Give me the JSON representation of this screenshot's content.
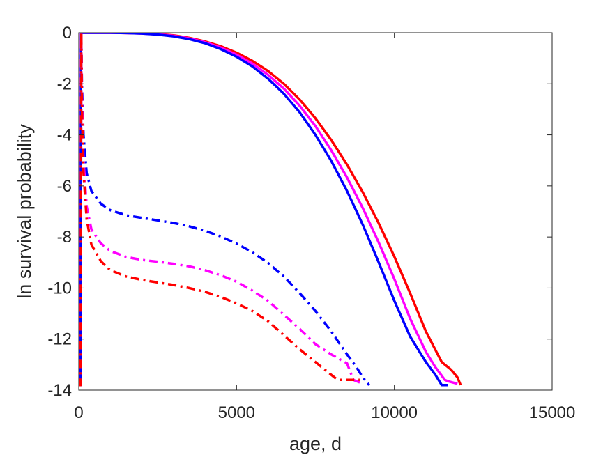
{
  "chart_data": {
    "type": "line",
    "title": "",
    "xlabel": "age, d",
    "ylabel": "ln survival probability",
    "xlim": [
      0,
      15000
    ],
    "ylim": [
      -14,
      0
    ],
    "xticks": [
      0,
      5000,
      10000,
      15000
    ],
    "yticks": [
      0,
      -2,
      -4,
      -6,
      -8,
      -10,
      -12,
      -14
    ],
    "grid": false,
    "legend": "none",
    "series": [
      {
        "color": "#ff0000",
        "style": "solid",
        "points": [
          [
            0,
            -13.8
          ],
          [
            60,
            -13.8
          ],
          [
            70,
            0
          ],
          [
            500,
            0
          ],
          [
            1000,
            0
          ],
          [
            1500,
            -0.01
          ],
          [
            2000,
            -0.02
          ],
          [
            2500,
            -0.05
          ],
          [
            3000,
            -0.1
          ],
          [
            3500,
            -0.2
          ],
          [
            4000,
            -0.34
          ],
          [
            4500,
            -0.53
          ],
          [
            5000,
            -0.78
          ],
          [
            5500,
            -1.1
          ],
          [
            6000,
            -1.5
          ],
          [
            6500,
            -2.0
          ],
          [
            7000,
            -2.62
          ],
          [
            7500,
            -3.35
          ],
          [
            8000,
            -4.2
          ],
          [
            8500,
            -5.17
          ],
          [
            9000,
            -6.25
          ],
          [
            9500,
            -7.45
          ],
          [
            10000,
            -8.77
          ],
          [
            10500,
            -10.2
          ],
          [
            11000,
            -11.7
          ],
          [
            11500,
            -12.9
          ],
          [
            11800,
            -13.2
          ],
          [
            12000,
            -13.5
          ],
          [
            12100,
            -13.8
          ]
        ]
      },
      {
        "color": "#ff00ff",
        "style": "solid",
        "points": [
          [
            0,
            -13.8
          ],
          [
            60,
            -13.8
          ],
          [
            70,
            0
          ],
          [
            500,
            0
          ],
          [
            1000,
            0
          ],
          [
            1500,
            -0.01
          ],
          [
            2000,
            -0.03
          ],
          [
            2500,
            -0.06
          ],
          [
            3000,
            -0.12
          ],
          [
            3500,
            -0.22
          ],
          [
            4000,
            -0.37
          ],
          [
            4500,
            -0.58
          ],
          [
            5000,
            -0.86
          ],
          [
            5500,
            -1.21
          ],
          [
            6000,
            -1.65
          ],
          [
            6500,
            -2.19
          ],
          [
            7000,
            -2.86
          ],
          [
            7500,
            -3.66
          ],
          [
            8000,
            -4.6
          ],
          [
            8500,
            -5.67
          ],
          [
            9000,
            -6.87
          ],
          [
            9500,
            -8.2
          ],
          [
            10000,
            -9.65
          ],
          [
            10500,
            -11.2
          ],
          [
            11000,
            -12.5
          ],
          [
            11300,
            -13.1
          ],
          [
            11600,
            -13.6
          ],
          [
            11700,
            -13.65
          ],
          [
            12000,
            -13.75
          ]
        ]
      },
      {
        "color": "#0000ff",
        "style": "solid",
        "points": [
          [
            0,
            -13.8
          ],
          [
            60,
            -13.8
          ],
          [
            70,
            0
          ],
          [
            500,
            0
          ],
          [
            1000,
            0
          ],
          [
            1500,
            -0.01
          ],
          [
            2000,
            -0.03
          ],
          [
            2500,
            -0.07
          ],
          [
            3000,
            -0.14
          ],
          [
            3500,
            -0.25
          ],
          [
            4000,
            -0.41
          ],
          [
            4500,
            -0.64
          ],
          [
            5000,
            -0.94
          ],
          [
            5500,
            -1.32
          ],
          [
            6000,
            -1.8
          ],
          [
            6500,
            -2.39
          ],
          [
            7000,
            -3.12
          ],
          [
            7500,
            -4.0
          ],
          [
            8000,
            -5.02
          ],
          [
            8500,
            -6.2
          ],
          [
            9000,
            -7.52
          ],
          [
            9500,
            -8.98
          ],
          [
            10000,
            -10.5
          ],
          [
            10500,
            -11.9
          ],
          [
            11000,
            -12.9
          ],
          [
            11300,
            -13.4
          ],
          [
            11500,
            -13.8
          ],
          [
            11700,
            -13.8
          ]
        ]
      },
      {
        "color": "#0000ff",
        "style": "dashdot",
        "points": [
          [
            0,
            -13.8
          ],
          [
            60,
            -13.8
          ],
          [
            80,
            0
          ],
          [
            100,
            -2
          ],
          [
            150,
            -4
          ],
          [
            250,
            -5.5
          ],
          [
            400,
            -6.2
          ],
          [
            700,
            -6.7
          ],
          [
            1000,
            -6.95
          ],
          [
            1500,
            -7.15
          ],
          [
            2000,
            -7.25
          ],
          [
            2500,
            -7.35
          ],
          [
            3000,
            -7.45
          ],
          [
            3500,
            -7.58
          ],
          [
            4000,
            -7.76
          ],
          [
            4500,
            -7.98
          ],
          [
            5000,
            -8.26
          ],
          [
            5500,
            -8.6
          ],
          [
            6000,
            -9.02
          ],
          [
            6500,
            -9.55
          ],
          [
            7000,
            -10.2
          ],
          [
            7500,
            -10.9
          ],
          [
            8000,
            -11.7
          ],
          [
            8500,
            -12.6
          ],
          [
            8800,
            -13.1
          ],
          [
            9000,
            -13.5
          ],
          [
            9200,
            -13.8
          ]
        ]
      },
      {
        "color": "#ff00ff",
        "style": "dashdot",
        "points": [
          [
            0,
            -13.8
          ],
          [
            60,
            -13.8
          ],
          [
            80,
            0
          ],
          [
            100,
            -2.5
          ],
          [
            150,
            -5
          ],
          [
            250,
            -6.8
          ],
          [
            400,
            -7.7
          ],
          [
            700,
            -8.25
          ],
          [
            1000,
            -8.55
          ],
          [
            1500,
            -8.78
          ],
          [
            2000,
            -8.9
          ],
          [
            2500,
            -8.97
          ],
          [
            3000,
            -9.05
          ],
          [
            3500,
            -9.15
          ],
          [
            4000,
            -9.3
          ],
          [
            4500,
            -9.5
          ],
          [
            5000,
            -9.75
          ],
          [
            5500,
            -10.1
          ],
          [
            6000,
            -10.5
          ],
          [
            6500,
            -11.05
          ],
          [
            7000,
            -11.6
          ],
          [
            7500,
            -12.2
          ],
          [
            8000,
            -12.6
          ],
          [
            8500,
            -12.95
          ],
          [
            8700,
            -13.6
          ],
          [
            9000,
            -13.75
          ]
        ]
      },
      {
        "color": "#ff0000",
        "style": "dashdot",
        "points": [
          [
            0,
            -13.8
          ],
          [
            60,
            -13.8
          ],
          [
            80,
            0
          ],
          [
            100,
            -3
          ],
          [
            150,
            -5.5
          ],
          [
            250,
            -7.3
          ],
          [
            400,
            -8.3
          ],
          [
            700,
            -8.95
          ],
          [
            1000,
            -9.3
          ],
          [
            1500,
            -9.55
          ],
          [
            2000,
            -9.68
          ],
          [
            2500,
            -9.78
          ],
          [
            3000,
            -9.88
          ],
          [
            3500,
            -10.0
          ],
          [
            4000,
            -10.15
          ],
          [
            4500,
            -10.35
          ],
          [
            5000,
            -10.6
          ],
          [
            5500,
            -10.9
          ],
          [
            6000,
            -11.3
          ],
          [
            6500,
            -11.85
          ],
          [
            7000,
            -12.4
          ],
          [
            7500,
            -12.9
          ],
          [
            8000,
            -13.4
          ],
          [
            8200,
            -13.6
          ],
          [
            8500,
            -13.6
          ],
          [
            8900,
            -13.6
          ]
        ]
      }
    ]
  }
}
